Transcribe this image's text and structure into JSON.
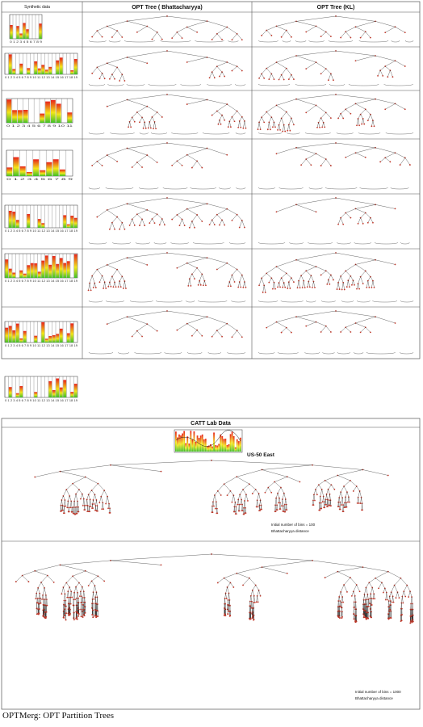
{
  "headers": {
    "col1": "Synthetic data",
    "col2": "OPT Tree ( Bhattacharyya)",
    "col3": "OPT Tree (KL)"
  },
  "rows": [
    {
      "ticks": "0 1 2 3 4 5 6 7 8 9"
    },
    {
      "ticks": "0 1 2 3 4 5 6 7 8 9 10 11 12 13 14 15 16 17 18 19"
    },
    {
      "ticks": "0 1 2 3 4 5 6 7 8 9 10 11"
    },
    {
      "ticks": "0 1 2 3 4 5 6 7 8 9"
    },
    {
      "ticks": "0 1 2 3 4 5 6 7 8 9 10 11 12 13 14 15 16 17 18 19"
    },
    {
      "ticks": "0 1 2 3 4 5 6 7 8 9 10 11 12 13 14 15 16 17 18 19"
    },
    {
      "ticks": "0 1 2 3 4 5 6 7 8 9 10 11 12 13 14 15 16 17 18 19"
    },
    {
      "ticks": "0 1 2 3 4 5 6 7 8 9 10 11 12 13 14 15 16 17 18 19"
    }
  ],
  "catt": {
    "title": "CATT Lab Data",
    "location": "US-50 East",
    "panel1_note_line1": "Initial number of bins = 100",
    "panel1_note_line2": "Bhattacharyya distance",
    "panel2_note_line1": "Initial number of bins = 1000",
    "panel2_note_line2": "Bhattacharyya distance"
  },
  "caption": "OPTMerg: OPT Partition Trees",
  "colors": {
    "histogram_peak": "#e8221b",
    "histogram_mid": "#f2e61a",
    "histogram_low": "#3fbf2a",
    "node": "#c0392b",
    "edge": "#222222"
  }
}
